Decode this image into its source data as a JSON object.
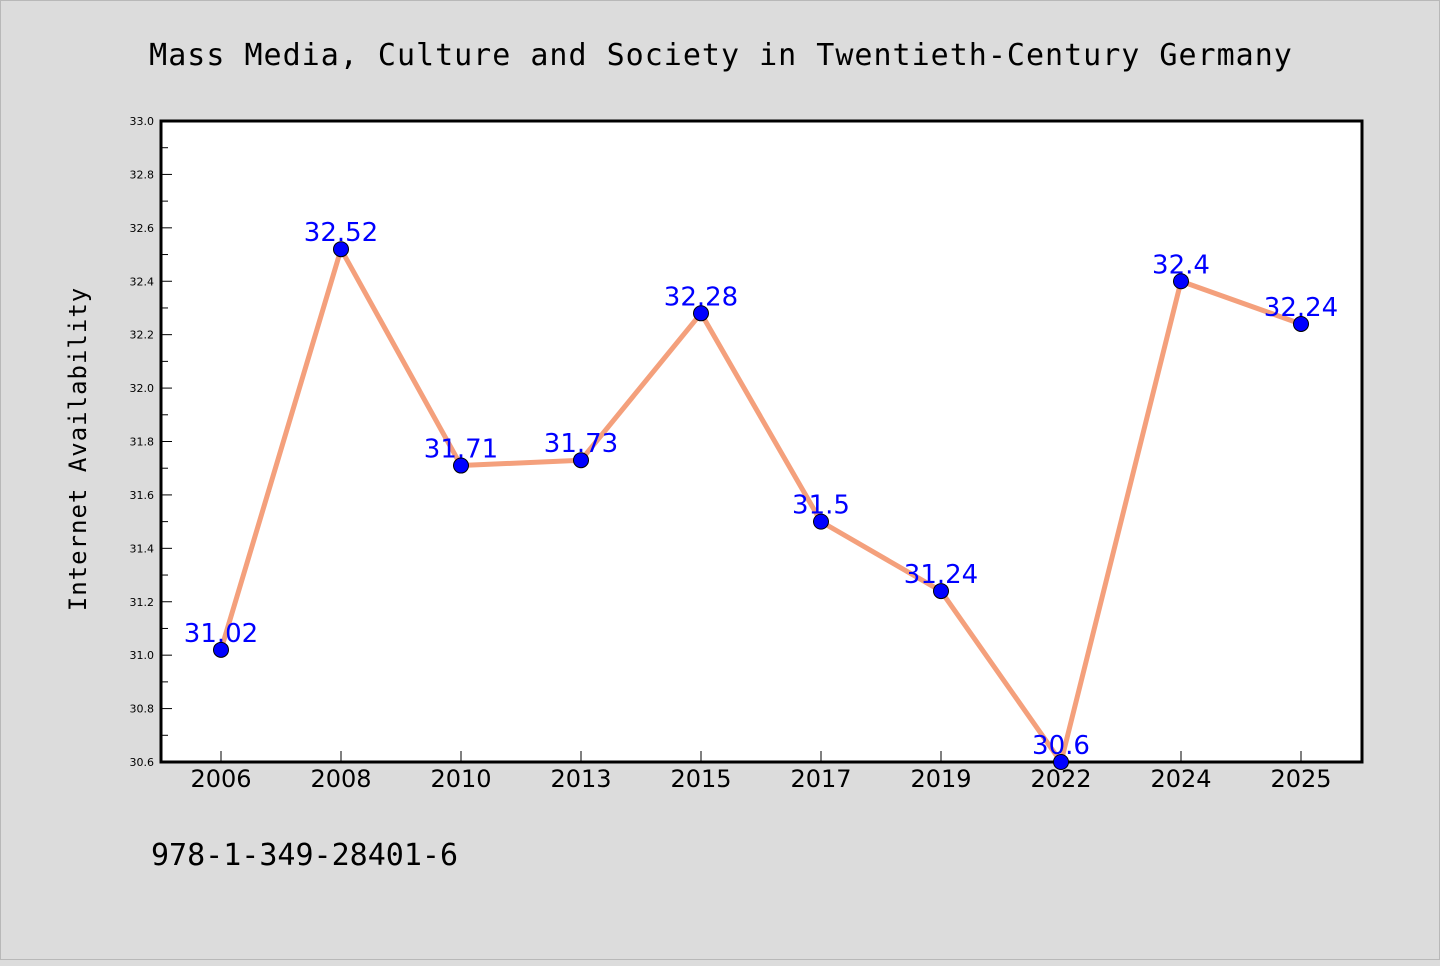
{
  "chart_data": {
    "type": "line",
    "title": "Mass Media, Culture and Society in Twentieth-Century Germany",
    "xlabel": "",
    "ylabel": "Internet Availability",
    "categories": [
      "2006",
      "2008",
      "2010",
      "2013",
      "2015",
      "2017",
      "2019",
      "2022",
      "2024",
      "2025"
    ],
    "series": [
      {
        "values": [
          31.02,
          32.52,
          31.71,
          31.73,
          32.28,
          31.5,
          31.24,
          30.6,
          32.4,
          32.24
        ],
        "data_labels": [
          "31.02",
          "32.52",
          "31.71",
          "31.73",
          "32.28",
          "31.5",
          "31.24",
          "30.6",
          "32.4",
          "32.24"
        ]
      }
    ],
    "ylim": [
      30.6,
      33.0
    ],
    "yticks": [
      "30.6",
      "30.8",
      "31.0",
      "31.2",
      "31.4",
      "31.6",
      "31.8",
      "32.0",
      "32.2",
      "32.4",
      "32.6",
      "32.8",
      "33.0"
    ],
    "grid": false,
    "legend": "none",
    "colors": {
      "line": "#f4a07c",
      "marker": "#0000ff",
      "data_label": "#0000ff",
      "background": "#dcdcdc",
      "plot_area": "#ffffff"
    }
  },
  "footer": {
    "isbn": "978-1-349-28401-6"
  }
}
